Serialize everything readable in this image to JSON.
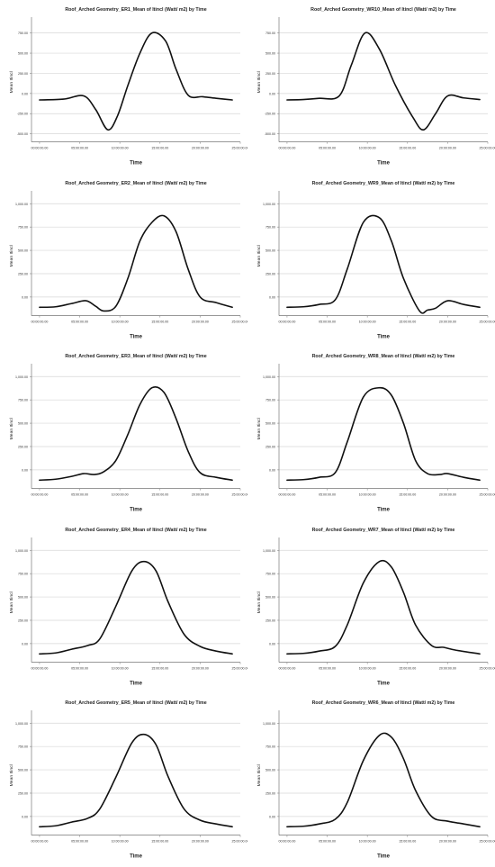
{
  "chart_data": [
    {
      "type": "line",
      "title": "Roof_Arched Geometry_ER1_Mean of Itincl (Watt/ m2) by Time",
      "xlabel": "Time",
      "ylabel": "Mean Itincl",
      "x_ticks": [
        "00:00:00.00",
        "05:00:00.00",
        "10:00:00.00",
        "15:00:00.00",
        "20:00:00.00",
        "25:00:00.00"
      ],
      "y_ticks": [
        "-500.00",
        "-250.00",
        "0.00",
        "250.00",
        "500.00",
        "750.00"
      ],
      "xlim": [
        -1,
        25
      ],
      "ylim": [
        -600,
        880
      ],
      "series": [
        {
          "x": [
            0,
            3,
            5.5,
            7,
            8.5,
            9.7,
            11,
            12.5,
            14,
            15.7,
            17,
            18.5,
            20.3,
            22,
            24
          ],
          "y": [
            -80,
            -70,
            -30,
            -200,
            -450,
            -280,
            100,
            500,
            750,
            650,
            300,
            -20,
            -40,
            -60,
            -80
          ]
        }
      ]
    },
    {
      "type": "line",
      "title": "Roof_Arched Geometry_WR10_Mean of Itincl (Watt/ m2) by Time",
      "xlabel": "Time",
      "ylabel": "Mean Itincl",
      "x_ticks": [
        "00:00:00.00",
        "05:00:00.00",
        "10:00:00.00",
        "15:00:00.00",
        "20:00:00.00",
        "25:00:00.00"
      ],
      "y_ticks": [
        "-500.00",
        "-250.00",
        "0.00",
        "250.00",
        "500.00",
        "750.00"
      ],
      "xlim": [
        -1,
        25
      ],
      "ylim": [
        -600,
        880
      ],
      "series": [
        {
          "x": [
            0,
            2,
            4,
            6.5,
            8,
            9.7,
            11.5,
            13.5,
            15.7,
            17,
            18.5,
            20,
            22,
            24
          ],
          "y": [
            -80,
            -75,
            -60,
            -30,
            350,
            750,
            550,
            100,
            -300,
            -450,
            -250,
            -30,
            -55,
            -75
          ]
        }
      ]
    },
    {
      "type": "line",
      "title": "Roof_Arched Geometry_ER2_Mean of Itincl (Watt/ m2) by Time",
      "xlabel": "Time",
      "ylabel": "Mean Itincl",
      "x_ticks": [
        "00:00:00.00",
        "05:00:00.00",
        "10:00:00.00",
        "15:00:00.00",
        "20:00:00.00",
        "25:00:00.00"
      ],
      "y_ticks": [
        "0.00",
        "250.00",
        "500.00",
        "750.00",
        "1,000.00"
      ],
      "xlim": [
        -1,
        25
      ],
      "ylim": [
        -200,
        1080
      ],
      "series": [
        {
          "x": [
            0,
            2,
            4,
            5.8,
            7,
            8,
            9.5,
            11,
            12.5,
            14,
            15.5,
            17,
            18.5,
            20,
            22,
            24
          ],
          "y": [
            -110,
            -105,
            -70,
            -40,
            -100,
            -150,
            -100,
            200,
            600,
            800,
            870,
            700,
            300,
            0,
            -60,
            -110
          ]
        }
      ]
    },
    {
      "type": "line",
      "title": "Roof_Arched Geometry_WR9_Mean of Itincl (Watt/ m2) by Time",
      "xlabel": "Time",
      "ylabel": "Mean Itincl",
      "x_ticks": [
        "00:00:00.00",
        "05:00:00.00",
        "10:00:00.00",
        "15:00:00.00",
        "20:00:00.00",
        "25:00:00.00"
      ],
      "y_ticks": [
        "0.00",
        "250.00",
        "500.00",
        "750.00",
        "1,000.00"
      ],
      "xlim": [
        -1,
        25
      ],
      "ylim": [
        -200,
        1080
      ],
      "series": [
        {
          "x": [
            0,
            2,
            4,
            6,
            7.5,
            9.5,
            11.5,
            13,
            14.5,
            16.5,
            17.5,
            18.5,
            20,
            22,
            24
          ],
          "y": [
            -110,
            -105,
            -80,
            -30,
            300,
            800,
            850,
            600,
            200,
            -150,
            -140,
            -120,
            -40,
            -80,
            -110
          ]
        }
      ]
    },
    {
      "type": "line",
      "title": "Roof_Arched Geometry_ER3_Mean of Itincl (Watt/ m2) by Time",
      "xlabel": "Time",
      "ylabel": "Mean Itincl",
      "x_ticks": [
        "00:00:00.00",
        "05:00:00.00",
        "10:00:00.00",
        "15:00:00.00",
        "20:00:00.00",
        "25:00:00.00"
      ],
      "y_ticks": [
        "0.00",
        "250.00",
        "500.00",
        "750.00",
        "1,000.00"
      ],
      "xlim": [
        -1,
        25
      ],
      "ylim": [
        -200,
        1080
      ],
      "series": [
        {
          "x": [
            0,
            2,
            4,
            5.5,
            6.8,
            8,
            9.5,
            11,
            12.5,
            14,
            15.5,
            17,
            18.5,
            20,
            22,
            24
          ],
          "y": [
            -110,
            -100,
            -70,
            -40,
            -50,
            -20,
            100,
            380,
            700,
            880,
            830,
            550,
            200,
            -30,
            -80,
            -110
          ]
        }
      ]
    },
    {
      "type": "line",
      "title": "Roof_Arched Geometry_WR8_Mean of Itincl (Watt/ m2) by Time",
      "xlabel": "Time",
      "ylabel": "Mean Itincl",
      "x_ticks": [
        "00:00:00.00",
        "05:00:00.00",
        "10:00:00.00",
        "15:00:00.00",
        "20:00:00.00",
        "25:00:00.00"
      ],
      "y_ticks": [
        "0.00",
        "250.00",
        "500.00",
        "750.00",
        "1,000.00"
      ],
      "xlim": [
        -1,
        25
      ],
      "ylim": [
        -200,
        1080
      ],
      "series": [
        {
          "x": [
            0,
            2,
            4,
            6,
            7.5,
            9.5,
            11.5,
            13,
            14.5,
            16,
            17.5,
            19,
            20,
            22,
            24
          ],
          "y": [
            -110,
            -105,
            -80,
            -30,
            300,
            780,
            880,
            800,
            500,
            100,
            -40,
            -50,
            -40,
            -80,
            -110
          ]
        }
      ]
    },
    {
      "type": "line",
      "title": "Roof_Arched Geometry_ER4_Mean of Itincl (Watt/ m2) by Time",
      "xlabel": "Time",
      "ylabel": "Mean Itincl",
      "x_ticks": [
        "00:00:00.00",
        "05:00:00.00",
        "10:00:00.00",
        "15:00:00.00",
        "20:00:00.00",
        "25:00:00.00"
      ],
      "y_ticks": [
        "0.00",
        "250.00",
        "500.00",
        "750.00",
        "1,000.00"
      ],
      "xlim": [
        -1,
        25
      ],
      "ylim": [
        -200,
        1080
      ],
      "series": [
        {
          "x": [
            0,
            2,
            4,
            6,
            7.5,
            9.5,
            11.5,
            13,
            14.5,
            16,
            18,
            20,
            22,
            24
          ],
          "y": [
            -110,
            -100,
            -60,
            -20,
            50,
            400,
            780,
            880,
            780,
            450,
            100,
            -30,
            -80,
            -110
          ]
        }
      ]
    },
    {
      "type": "line",
      "title": "Roof_Arched Geometry_WR7_Mean of Itincl (Watt/ m2) by Time",
      "xlabel": "Time",
      "ylabel": "Mean Itincl",
      "x_ticks": [
        "00:00:00.00",
        "05:00:00.00",
        "10:00:00.00",
        "15:00:00.00",
        "20:00:00.00",
        "25:00:00.00"
      ],
      "y_ticks": [
        "0.00",
        "250.00",
        "500.00",
        "750.00",
        "1,000.00"
      ],
      "xlim": [
        -1,
        25
      ],
      "ylim": [
        -200,
        1080
      ],
      "series": [
        {
          "x": [
            0,
            2,
            4,
            6,
            7.5,
            9.5,
            11.5,
            13,
            14.5,
            16,
            18,
            19.5,
            21,
            24
          ],
          "y": [
            -110,
            -105,
            -80,
            -30,
            200,
            650,
            880,
            820,
            550,
            200,
            -20,
            -40,
            -70,
            -110
          ]
        }
      ]
    },
    {
      "type": "line",
      "title": "Roof_Arched Geometry_ER5_Mean of Itincl (Watt/ m2) by Time",
      "xlabel": "Time",
      "ylabel": "Mean Itincl",
      "x_ticks": [
        "00:00:00.00",
        "05:00:00.00",
        "10:00:00.00",
        "15:00:00.00",
        "20:00:00.00",
        "25:00:00.00"
      ],
      "y_ticks": [
        "0.00",
        "250.00",
        "500.00",
        "750.00",
        "1,000.00"
      ],
      "xlim": [
        -1,
        25
      ],
      "ylim": [
        -200,
        1080
      ],
      "series": [
        {
          "x": [
            0,
            2,
            4,
            6,
            7.5,
            9.5,
            11.5,
            13,
            14.5,
            16,
            18,
            20,
            22,
            24
          ],
          "y": [
            -110,
            -100,
            -60,
            -20,
            80,
            420,
            790,
            880,
            770,
            430,
            80,
            -40,
            -80,
            -110
          ]
        }
      ]
    },
    {
      "type": "line",
      "title": "Roof_Arched Geometry_WR6_Mean of Itincl (Watt/ m2) by Time",
      "xlabel": "Time",
      "ylabel": "Mean Itincl",
      "x_ticks": [
        "00:00:00.00",
        "05:00:00.00",
        "10:00:00.00",
        "15:00:00.00",
        "20:00:00.00",
        "25:00:00.00"
      ],
      "y_ticks": [
        "0.00",
        "250.00",
        "500.00",
        "750.00",
        "1,000.00"
      ],
      "xlim": [
        -1,
        25
      ],
      "ylim": [
        -200,
        1080
      ],
      "series": [
        {
          "x": [
            0,
            2,
            4,
            6,
            7.5,
            9.5,
            11.5,
            13,
            14.5,
            16,
            18,
            20,
            22,
            24
          ],
          "y": [
            -110,
            -105,
            -80,
            -30,
            150,
            600,
            870,
            850,
            620,
            280,
            0,
            -50,
            -80,
            -110
          ]
        }
      ]
    }
  ]
}
